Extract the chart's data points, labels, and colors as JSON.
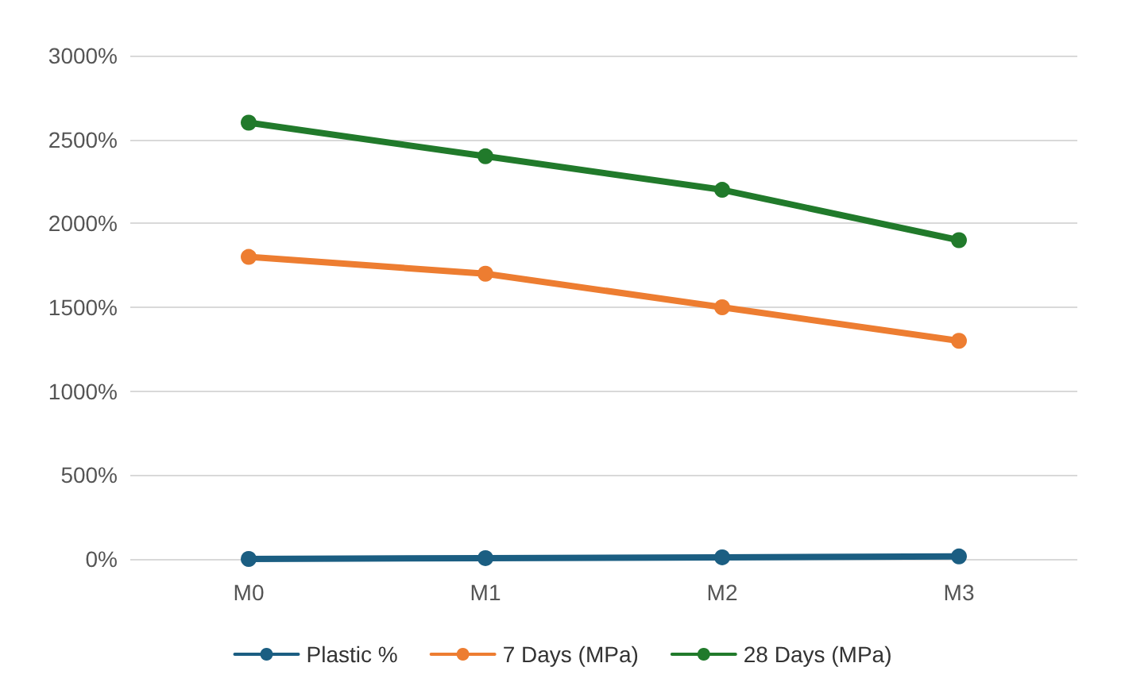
{
  "chart_data": {
    "type": "line",
    "categories": [
      "M0",
      "M1",
      "M2",
      "M3"
    ],
    "series": [
      {
        "name": "Plastic %",
        "color": "#1b5e82",
        "values": [
          0,
          5,
          10,
          15
        ]
      },
      {
        "name": "7 Days (MPa)",
        "color": "#ed7d31",
        "values": [
          1800,
          1700,
          1500,
          1300
        ]
      },
      {
        "name": "28 Days (MPa)",
        "color": "#217a2b",
        "values": [
          2600,
          2400,
          2200,
          1900
        ]
      }
    ],
    "ylim": [
      0,
      3000
    ],
    "yticks": [
      {
        "value": 0,
        "label": "0%"
      },
      {
        "value": 500,
        "label": "500%"
      },
      {
        "value": 1000,
        "label": "1000%"
      },
      {
        "value": 1500,
        "label": "1500%"
      },
      {
        "value": 2000,
        "label": "2000%"
      },
      {
        "value": 2500,
        "label": "2500%"
      },
      {
        "value": 3000,
        "label": "3000%"
      }
    ],
    "grid": "y",
    "legend": "bottom",
    "marker": "circle",
    "line_style": "solid"
  }
}
